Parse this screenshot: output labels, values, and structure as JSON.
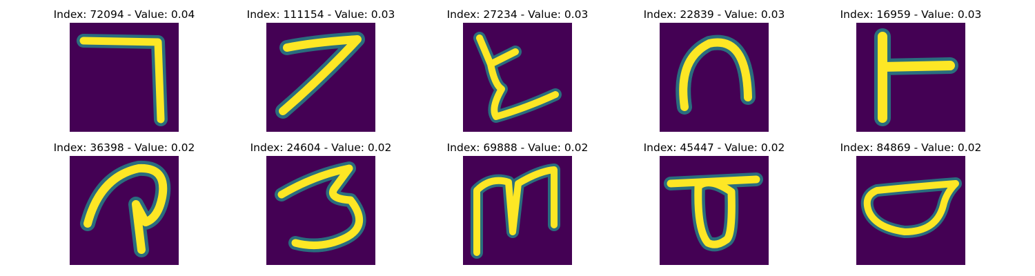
{
  "panels": [
    {
      "index_label": "Index: 72094 - Value: 0.04",
      "glyph_icon": "glyph-7-reversed-icon"
    },
    {
      "index_label": "Index: 111154 - Value: 0.03",
      "glyph_icon": "glyph-7-icon"
    },
    {
      "index_label": "Index: 27234 - Value: 0.03",
      "glyph_icon": "glyph-l-hook-icon"
    },
    {
      "index_label": "Index: 22839 - Value: 0.03",
      "glyph_icon": "glyph-arch-icon"
    },
    {
      "index_label": "Index: 16959 - Value: 0.03",
      "glyph_icon": "glyph-t-sideways-icon"
    },
    {
      "index_label": "Index: 36398 - Value: 0.02",
      "glyph_icon": "glyph-p-loop-icon"
    },
    {
      "index_label": "Index: 24604 - Value: 0.02",
      "glyph_icon": "glyph-3-icon"
    },
    {
      "index_label": "Index: 69888 - Value: 0.02",
      "glyph_icon": "glyph-m-icon"
    },
    {
      "index_label": "Index: 45447 - Value: 0.02",
      "glyph_icon": "glyph-loop-under-bar-icon"
    },
    {
      "index_label": "Index: 84869 - Value: 0.02",
      "glyph_icon": "glyph-bowl-icon"
    }
  ],
  "colors": {
    "background": "#440154",
    "stroke_core": "#fde725",
    "stroke_edge": "#21918c"
  }
}
